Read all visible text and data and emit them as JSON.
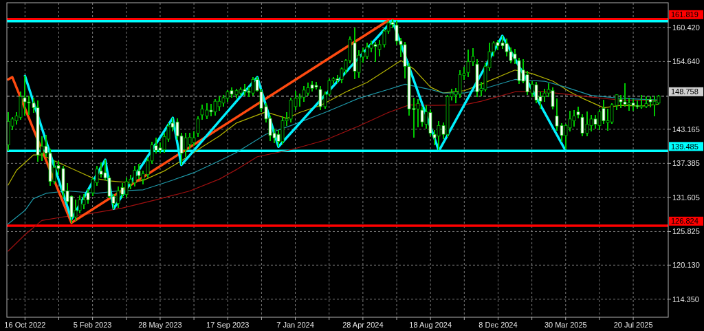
{
  "chart_data": {
    "type": "candlestick",
    "x": [
      "2022-09-18",
      "2022-09-25",
      "2022-10-02",
      "2022-10-09",
      "2022-10-16",
      "2022-10-23",
      "2022-10-30",
      "2022-11-06",
      "2022-11-13",
      "2022-11-20",
      "2022-11-27",
      "2022-12-04",
      "2022-12-11",
      "2022-12-18",
      "2022-12-25",
      "2023-01-01",
      "2023-01-08",
      "2023-01-15",
      "2023-01-22",
      "2023-01-29",
      "2023-02-05",
      "2023-02-12",
      "2023-02-19",
      "2023-02-26",
      "2023-03-05",
      "2023-03-12",
      "2023-03-19",
      "2023-03-26",
      "2023-04-02",
      "2023-04-09",
      "2023-04-16",
      "2023-04-23",
      "2023-04-30",
      "2023-05-07",
      "2023-05-14",
      "2023-05-21",
      "2023-05-28",
      "2023-06-04",
      "2023-06-11",
      "2023-06-18",
      "2023-06-25",
      "2023-07-02",
      "2023-07-09",
      "2023-07-16",
      "2023-07-23",
      "2023-07-30",
      "2023-08-06",
      "2023-08-13",
      "2023-08-20",
      "2023-08-27",
      "2023-09-03",
      "2023-09-10",
      "2023-09-17",
      "2023-09-24",
      "2023-10-01",
      "2023-10-08",
      "2023-10-15",
      "2023-10-22",
      "2023-10-29",
      "2023-11-05",
      "2023-11-12",
      "2023-11-19",
      "2023-11-26",
      "2023-12-03",
      "2023-12-10",
      "2023-12-17",
      "2023-12-24",
      "2023-12-31",
      "2024-01-07",
      "2024-01-14",
      "2024-01-21",
      "2024-01-28",
      "2024-02-04",
      "2024-02-11",
      "2024-02-18",
      "2024-02-25",
      "2024-03-03",
      "2024-03-10",
      "2024-03-17",
      "2024-03-24",
      "2024-03-31",
      "2024-04-07",
      "2024-04-14",
      "2024-04-21",
      "2024-04-28",
      "2024-05-05",
      "2024-05-12",
      "2024-05-19",
      "2024-05-26",
      "2024-06-02",
      "2024-06-09",
      "2024-06-16",
      "2024-06-23",
      "2024-06-30",
      "2024-07-07",
      "2024-07-14",
      "2024-07-21",
      "2024-07-28",
      "2024-08-04",
      "2024-08-11",
      "2024-08-18",
      "2024-08-25",
      "2024-09-01",
      "2024-09-08",
      "2024-09-15",
      "2024-09-22",
      "2024-09-29",
      "2024-10-06",
      "2024-10-13",
      "2024-10-20",
      "2024-10-27",
      "2024-11-03",
      "2024-11-10",
      "2024-11-17",
      "2024-11-24",
      "2024-12-01",
      "2024-12-08",
      "2024-12-15",
      "2024-12-22",
      "2024-12-29",
      "2025-01-05",
      "2025-01-12",
      "2025-01-19",
      "2025-01-26",
      "2025-02-02",
      "2025-02-09",
      "2025-02-16",
      "2025-02-23",
      "2025-03-02",
      "2025-03-09",
      "2025-03-16",
      "2025-03-23",
      "2025-03-30",
      "2025-04-06",
      "2025-04-13",
      "2025-04-20",
      "2025-04-27",
      "2025-05-04",
      "2025-05-11",
      "2025-05-18",
      "2025-05-25",
      "2025-06-01",
      "2025-06-08",
      "2025-06-15",
      "2025-06-22",
      "2025-06-29",
      "2025-07-06",
      "2025-07-13",
      "2025-07-20",
      "2025-07-27",
      "2025-08-03",
      "2025-08-10",
      "2025-08-17",
      "2025-08-24",
      "2025-08-31"
    ],
    "series": [
      {
        "type": "line",
        "color": "#b4b400",
        "x": [
          "2022-09-18",
          "2022-10-02",
          "2022-10-30",
          "2022-11-13",
          "2022-12-04",
          "2023-01-08",
          "2023-02-05",
          "2023-03-05",
          "2023-04-09",
          "2023-04-30",
          "2023-06-04",
          "2023-07-02",
          "2023-08-06",
          "2023-09-03",
          "2023-10-01",
          "2023-11-19",
          "2023-12-24",
          "2024-01-14",
          "2024-02-18",
          "2024-03-31",
          "2024-05-05",
          "2024-06-09",
          "2024-06-30",
          "2024-07-21",
          "2024-08-18",
          "2024-09-08",
          "2024-10-13",
          "2024-11-10",
          "2025-01-05",
          "2025-02-02",
          "2025-03-09",
          "2025-04-06",
          "2025-04-27",
          "2025-06-01",
          "2025-06-29",
          "2025-08-03",
          "2025-08-31"
        ],
        "values": [
          133.7,
          136.2,
          138.8,
          138.8,
          137.8,
          136.2,
          134.9,
          134.4,
          134.1,
          134.5,
          136.1,
          137.8,
          140.2,
          142.0,
          144.2,
          146.1,
          145.0,
          146.0,
          147.2,
          149.5,
          151.1,
          153.4,
          154.8,
          153.4,
          150.3,
          149.3,
          149.7,
          150.8,
          153.2,
          152.6,
          151.3,
          149.5,
          148.4,
          146.8,
          147.2,
          147.1,
          147.4
        ]
      },
      {
        "type": "line",
        "color": "#1e9aaa",
        "x": [
          "2022-09-18",
          "2022-10-16",
          "2022-10-30",
          "2022-11-20",
          "2022-12-25",
          "2023-02-12",
          "2023-03-19",
          "2023-04-30",
          "2023-06-11",
          "2023-07-23",
          "2023-09-03",
          "2023-10-01",
          "2023-11-19",
          "2023-12-31",
          "2024-02-25",
          "2024-04-21",
          "2024-06-09",
          "2024-07-07",
          "2024-08-18",
          "2024-09-08",
          "2024-10-13",
          "2024-11-10",
          "2025-01-05",
          "2025-02-23",
          "2025-03-30",
          "2025-05-11",
          "2025-06-29",
          "2025-08-31"
        ],
        "values": [
          127.1,
          129.4,
          131.4,
          132.3,
          132.7,
          132.3,
          132.7,
          132.9,
          134.3,
          135.8,
          137.8,
          139.2,
          142.3,
          143.8,
          146.0,
          148.4,
          149.9,
          150.8,
          149.9,
          149.3,
          149.3,
          149.9,
          151.6,
          151.3,
          150.3,
          148.9,
          148.4,
          148.1
        ]
      },
      {
        "type": "line",
        "color": "#a01010",
        "x": [
          "2022-09-18",
          "2022-10-16",
          "2022-11-13",
          "2022-12-18",
          "2023-01-29",
          "2023-03-26",
          "2023-05-21",
          "2023-07-16",
          "2023-09-03",
          "2023-10-01",
          "2023-11-05",
          "2023-12-31",
          "2024-02-25",
          "2024-04-21",
          "2024-06-09",
          "2024-07-14",
          "2024-08-25",
          "2024-10-13",
          "2024-11-10",
          "2025-01-05",
          "2025-02-23",
          "2025-05-04",
          "2025-06-29",
          "2025-08-31"
        ],
        "values": [
          122.5,
          125.3,
          127.7,
          128.3,
          128.8,
          129.8,
          131.2,
          132.7,
          134.7,
          136.3,
          138.5,
          139.7,
          141.3,
          143.7,
          146.0,
          147.3,
          147.2,
          147.3,
          147.9,
          149.5,
          149.5,
          148.7,
          148.1,
          148.0
        ]
      },
      {
        "type": "line",
        "color": "#ff4a10",
        "x": [
          "2022-09-18",
          "2022-09-25",
          "2023-01-01",
          "2024-06-09"
        ],
        "values": [
          151.6,
          152.0,
          127.3,
          161.6
        ]
      },
      {
        "type": "line",
        "color": "#00f0ff",
        "x": [
          "2022-10-16",
          "2023-01-01",
          "2023-02-26",
          "2023-03-12",
          "2023-06-18",
          "2023-07-02",
          "2023-11-05",
          "2023-12-10",
          "2024-06-16",
          "2024-09-01",
          "2024-12-15",
          "2025-03-30"
        ],
        "values": [
          152.2,
          127.9,
          138.0,
          129.7,
          145.1,
          137.1,
          152.0,
          140.2,
          161.6,
          139.5,
          159.0,
          139.5
        ]
      },
      {
        "color": "#00c800",
        "ohlc": [
          [
            140.5,
            146.0,
            139.5,
            144.5
          ],
          [
            143.7,
            145.2,
            143.0,
            144.9
          ],
          [
            144.6,
            146.0,
            144.0,
            145.4
          ],
          [
            145.2,
            149.5,
            144.8,
            148.7
          ],
          [
            148.5,
            152.2,
            145.5,
            147.8
          ],
          [
            147.8,
            148.9,
            145.6,
            147.6
          ],
          [
            147.6,
            148.5,
            145.9,
            146.8
          ],
          [
            146.8,
            148.0,
            137.7,
            138.8
          ],
          [
            139.1,
            142.0,
            137.8,
            140.3
          ],
          [
            140.3,
            142.2,
            138.5,
            139.1
          ],
          [
            139.1,
            139.9,
            133.6,
            134.3
          ],
          [
            134.3,
            137.9,
            133.9,
            136.7
          ],
          [
            137.0,
            137.8,
            135.5,
            136.5
          ],
          [
            136.5,
            137.0,
            131.6,
            132.7
          ],
          [
            132.7,
            134.0,
            130.5,
            130.9
          ],
          [
            131.8,
            132.0,
            127.3,
            128.3
          ],
          [
            128.3,
            131.2,
            127.6,
            129.4
          ],
          [
            129.4,
            132.0,
            128.9,
            131.2
          ],
          [
            130.4,
            132.2,
            129.6,
            131.2
          ],
          [
            132.4,
            133.0,
            130.6,
            131.2
          ],
          [
            132.4,
            135.0,
            131.8,
            134.7
          ],
          [
            134.1,
            137.0,
            133.6,
            136.4
          ],
          [
            136.1,
            137.5,
            135.0,
            135.5
          ],
          [
            135.8,
            138.0,
            134.5,
            134.9
          ],
          [
            134.9,
            135.3,
            131.5,
            131.8
          ],
          [
            131.8,
            132.2,
            129.6,
            130.6
          ],
          [
            130.6,
            133.5,
            129.9,
            132.7
          ],
          [
            133.3,
            134.0,
            131.5,
            132.1
          ],
          [
            132.1,
            135.0,
            131.6,
            134.3
          ],
          [
            133.9,
            135.5,
            133.0,
            134.7
          ],
          [
            134.1,
            137.0,
            133.5,
            136.2
          ],
          [
            136.1,
            137.3,
            134.8,
            135.3
          ],
          [
            134.7,
            136.2,
            133.8,
            135.6
          ],
          [
            135.5,
            138.3,
            135.0,
            137.8
          ],
          [
            137.8,
            141.0,
            137.3,
            140.5
          ],
          [
            140.4,
            141.7,
            139.0,
            139.6
          ],
          [
            140.0,
            140.9,
            139.0,
            139.6
          ],
          [
            139.7,
            142.5,
            139.2,
            141.9
          ],
          [
            141.5,
            144.2,
            141.0,
            143.7
          ],
          [
            144.2,
            145.1,
            142.8,
            143.5
          ],
          [
            144.4,
            145.0,
            141.4,
            142.0
          ],
          [
            142.0,
            142.6,
            137.1,
            139.1
          ],
          [
            139.7,
            142.5,
            138.5,
            141.7
          ],
          [
            140.6,
            142.5,
            139.8,
            141.8
          ],
          [
            140.9,
            142.8,
            140.3,
            141.7
          ],
          [
            142.5,
            145.3,
            141.8,
            144.9
          ],
          [
            145.6,
            147.3,
            144.8,
            146.6
          ],
          [
            145.4,
            147.6,
            144.9,
            146.4
          ],
          [
            146.4,
            147.4,
            145.3,
            146.1
          ],
          [
            146.1,
            148.3,
            145.5,
            147.9
          ],
          [
            147.0,
            148.7,
            146.3,
            147.9
          ],
          [
            147.6,
            149.0,
            147.0,
            148.5
          ],
          [
            148.4,
            149.8,
            147.8,
            149.5
          ],
          [
            149.7,
            150.2,
            148.5,
            149.1
          ],
          [
            149.0,
            150.0,
            148.4,
            149.7
          ],
          [
            149.3,
            150.2,
            148.8,
            149.9
          ],
          [
            149.9,
            150.8,
            148.9,
            149.6
          ],
          [
            149.6,
            150.2,
            148.6,
            149.4
          ],
          [
            149.3,
            152.0,
            148.9,
            151.6
          ],
          [
            151.6,
            152.0,
            149.5,
            149.7
          ],
          [
            149.5,
            150.0,
            146.0,
            146.7
          ],
          [
            147.0,
            147.6,
            144.3,
            144.9
          ],
          [
            145.0,
            145.5,
            141.2,
            142.1
          ],
          [
            142.5,
            143.2,
            140.8,
            141.7
          ],
          [
            142.3,
            143.0,
            140.2,
            141.1
          ],
          [
            141.1,
            145.3,
            140.6,
            144.6
          ],
          [
            144.6,
            146.0,
            143.7,
            144.9
          ],
          [
            144.9,
            148.5,
            144.3,
            148.1
          ],
          [
            147.0,
            149.7,
            146.4,
            148.4
          ],
          [
            148.4,
            149.2,
            147.0,
            148.6
          ],
          [
            148.6,
            150.5,
            147.8,
            149.8
          ],
          [
            149.3,
            151.1,
            148.9,
            150.2
          ],
          [
            150.7,
            151.3,
            149.6,
            150.1
          ],
          [
            150.6,
            151.2,
            149.9,
            150.3
          ],
          [
            149.9,
            150.5,
            146.4,
            147.0
          ],
          [
            147.0,
            149.5,
            146.6,
            149.1
          ],
          [
            149.1,
            151.8,
            148.7,
            151.4
          ],
          [
            151.4,
            152.0,
            150.8,
            151.7
          ],
          [
            151.7,
            152.3,
            150.9,
            151.5
          ],
          [
            151.6,
            153.6,
            151.0,
            153.4
          ],
          [
            153.2,
            155.0,
            152.6,
            154.8
          ],
          [
            154.8,
            158.9,
            154.3,
            158.4
          ],
          [
            157.8,
            160.4,
            151.6,
            153.0
          ],
          [
            152.8,
            156.5,
            151.9,
            155.7
          ],
          [
            155.4,
            157.0,
            154.5,
            156.3
          ],
          [
            155.5,
            157.8,
            155.0,
            157.1
          ],
          [
            156.9,
            158.2,
            156.2,
            157.5
          ],
          [
            157.5,
            158.0,
            154.6,
            157.2
          ],
          [
            156.7,
            158.3,
            155.5,
            157.5
          ],
          [
            157.5,
            160.2,
            157.0,
            159.8
          ],
          [
            159.8,
            161.5,
            159.3,
            161.2
          ],
          [
            161.3,
            161.8,
            160.3,
            160.9
          ],
          [
            160.8,
            161.6,
            157.5,
            158.1
          ],
          [
            158.1,
            158.6,
            155.4,
            157.5
          ],
          [
            157.5,
            157.9,
            151.8,
            153.8
          ],
          [
            153.8,
            154.3,
            145.5,
            146.6
          ],
          [
            146.7,
            148.5,
            141.7,
            146.5
          ],
          [
            146.6,
            148.3,
            143.5,
            147.5
          ],
          [
            146.4,
            147.0,
            143.6,
            144.4
          ],
          [
            144.0,
            147.2,
            143.2,
            146.1
          ],
          [
            146.0,
            146.5,
            142.0,
            142.5
          ],
          [
            142.3,
            143.0,
            140.5,
            141.7
          ],
          [
            142.0,
            144.5,
            139.6,
            143.8
          ],
          [
            143.8,
            144.3,
            141.5,
            142.3
          ],
          [
            142.3,
            149.0,
            141.8,
            148.7
          ],
          [
            148.7,
            150.0,
            148.0,
            149.3
          ],
          [
            149.0,
            150.1,
            147.6,
            149.5
          ],
          [
            149.1,
            153.2,
            148.5,
            152.4
          ],
          [
            152.3,
            153.8,
            151.5,
            152.6
          ],
          [
            152.8,
            156.7,
            152.0,
            154.6
          ],
          [
            154.6,
            156.9,
            153.9,
            155.5
          ],
          [
            154.2,
            155.0,
            148.6,
            149.5
          ],
          [
            149.7,
            151.2,
            148.7,
            150.1
          ],
          [
            149.9,
            154.5,
            149.5,
            153.8
          ],
          [
            153.6,
            157.8,
            153.0,
            156.3
          ],
          [
            156.3,
            158.1,
            155.5,
            157.8
          ],
          [
            157.9,
            158.3,
            156.5,
            157.3
          ],
          [
            157.8,
            159.0,
            156.8,
            157.3
          ],
          [
            157.7,
            158.5,
            155.5,
            156.3
          ],
          [
            156.3,
            157.0,
            154.3,
            154.8
          ],
          [
            155.9,
            156.8,
            154.2,
            155.1
          ],
          [
            154.8,
            155.3,
            150.8,
            151.4
          ],
          [
            153.2,
            155.0,
            150.9,
            151.3
          ],
          [
            152.4,
            153.0,
            149.0,
            149.5
          ],
          [
            149.3,
            151.3,
            148.6,
            150.8
          ],
          [
            150.7,
            151.2,
            147.6,
            148.1
          ],
          [
            148.7,
            149.5,
            146.6,
            147.9
          ],
          [
            148.7,
            150.0,
            147.8,
            149.3
          ],
          [
            149.3,
            151.0,
            148.6,
            149.9
          ],
          [
            149.7,
            150.3,
            146.5,
            147.0
          ],
          [
            145.4,
            148.4,
            142.9,
            143.7
          ],
          [
            143.8,
            144.2,
            141.0,
            142.1
          ],
          [
            142.1,
            144.1,
            139.7,
            143.8
          ],
          [
            143.4,
            146.3,
            142.8,
            144.9
          ],
          [
            144.6,
            146.4,
            143.6,
            145.4
          ],
          [
            146.1,
            147.0,
            145.0,
            145.6
          ],
          [
            145.2,
            145.7,
            142.0,
            142.5
          ],
          [
            142.5,
            146.2,
            142.0,
            144.0
          ],
          [
            143.8,
            145.6,
            142.8,
            144.9
          ],
          [
            144.9,
            145.6,
            143.2,
            144.0
          ],
          [
            143.8,
            146.5,
            143.0,
            146.1
          ],
          [
            146.7,
            148.1,
            144.1,
            144.6
          ],
          [
            144.3,
            146.6,
            142.9,
            144.6
          ],
          [
            144.4,
            147.6,
            144.1,
            147.3
          ],
          [
            147.2,
            149.1,
            146.4,
            149.0
          ],
          [
            148.2,
            149.0,
            146.8,
            147.8
          ],
          [
            147.8,
            150.9,
            147.0,
            147.4
          ],
          [
            147.4,
            148.5,
            146.3,
            147.6
          ],
          [
            147.6,
            148.3,
            146.3,
            147.2
          ],
          [
            147.2,
            148.0,
            146.6,
            147.0
          ],
          [
            146.9,
            149.0,
            146.6,
            147.1
          ],
          [
            147.0,
            148.7,
            146.7,
            147.5
          ],
          [
            148.2,
            148.7,
            146.9,
            147.8
          ],
          [
            147.3,
            148.8,
            145.4,
            147.9
          ],
          [
            147.6,
            149.0,
            147.3,
            148.758
          ]
        ]
      }
    ],
    "xlim": [
      "2022-09-16",
      "2025-09-16"
    ],
    "xticks": [
      {
        "value": "2022-10-16",
        "label": "16 Oct 2022"
      },
      {
        "value": "2022-12-11",
        "label": null
      },
      {
        "value": "2023-02-05",
        "label": "5 Feb 2023"
      },
      {
        "value": "2023-04-02",
        "label": null
      },
      {
        "value": "2023-05-28",
        "label": "28 May 2023"
      },
      {
        "value": "2023-07-23",
        "label": null
      },
      {
        "value": "2023-09-17",
        "label": "17 Sep 2023"
      },
      {
        "value": "2023-11-12",
        "label": null
      },
      {
        "value": "2024-01-07",
        "label": "7 Jan 2024"
      },
      {
        "value": "2024-03-03",
        "label": null
      },
      {
        "value": "2024-04-28",
        "label": "28 Apr 2024"
      },
      {
        "value": "2024-06-23",
        "label": null
      },
      {
        "value": "2024-08-18",
        "label": "18 Aug 2024"
      },
      {
        "value": "2024-10-13",
        "label": null
      },
      {
        "value": "2024-12-08",
        "label": "8 Dec 2024"
      },
      {
        "value": "2025-02-02",
        "label": null
      },
      {
        "value": "2025-03-30",
        "label": "30 Mar 2025"
      },
      {
        "value": "2025-05-25",
        "label": null
      },
      {
        "value": "2025-07-20",
        "label": "20 Jul 2025"
      }
    ],
    "ylim": [
      111.3,
      164.6
    ],
    "yticks": [
      {
        "value": 114.35,
        "label": "114.350"
      },
      {
        "value": 120.13,
        "label": "120.130"
      },
      {
        "value": 125.825,
        "label": "125.825"
      },
      {
        "value": 131.605,
        "label": "131.605"
      },
      {
        "value": 137.385,
        "label": "137.385"
      },
      {
        "value": 143.165,
        "label": "143.165"
      },
      {
        "value": 154.64,
        "label": "154.640"
      },
      {
        "value": 160.42,
        "label": "160.420"
      }
    ],
    "grid": true,
    "ref_lines": [
      {
        "axis": "y",
        "value": 161.819,
        "label": "161.819",
        "color": "#ff0000"
      },
      {
        "axis": "y",
        "value": 161.47,
        "label": null,
        "color": "#00ffff"
      },
      {
        "axis": "y",
        "value": 139.485,
        "label": "139.485",
        "color": "#00ffff"
      },
      {
        "axis": "y",
        "value": 126.824,
        "label": "126.824",
        "color": "#ff0000"
      },
      {
        "axis": "y",
        "value": 148.758,
        "label": "148.758",
        "color": "#d0d0d0",
        "line_style": "dashed"
      }
    ]
  }
}
